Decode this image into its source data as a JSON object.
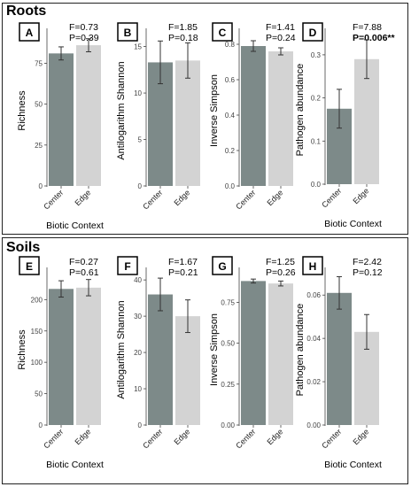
{
  "sections": [
    {
      "title": "Roots",
      "panels_label": "roots"
    },
    {
      "title": "Soils",
      "panels_label": "soils"
    }
  ],
  "colors": {
    "center": "#7d8a89",
    "edge": "#d3d3d3",
    "axis": "#444444",
    "text": "#000000"
  },
  "chart_data": [
    {
      "type": "bar",
      "panel": "A",
      "section": "Roots",
      "categories": [
        "Center",
        "Edge"
      ],
      "values": [
        81,
        86
      ],
      "errors": [
        4,
        4
      ],
      "ylabel": "Richness",
      "xlabel": "Biotic Context",
      "ylim": [
        0,
        92
      ],
      "yticks": [
        "0",
        "25",
        "50",
        "75"
      ],
      "ytick_values": [
        0,
        25,
        50,
        75
      ],
      "stats": [
        "F=0.73",
        "P=0.39"
      ],
      "stats_bold": [
        false,
        false
      ]
    },
    {
      "type": "bar",
      "panel": "B",
      "section": "Roots",
      "categories": [
        "Center",
        "Edge"
      ],
      "values": [
        13.3,
        13.5
      ],
      "errors": [
        2.3,
        1.9
      ],
      "ylabel": "Antilogarithm Shannon",
      "xlabel": "",
      "ylim": [
        0,
        16.2
      ],
      "yticks": [
        "0",
        "5",
        "10",
        "15"
      ],
      "ytick_values": [
        0,
        5,
        10,
        15
      ],
      "stats": [
        "F=1.85",
        "P=0.18"
      ],
      "stats_bold": [
        false,
        false
      ]
    },
    {
      "type": "bar",
      "panel": "C",
      "section": "Roots",
      "categories": [
        "Center",
        "Edge"
      ],
      "values": [
        0.79,
        0.76
      ],
      "errors": [
        0.03,
        0.02
      ],
      "ylabel": "Inverse Simpson",
      "xlabel": "",
      "ylim": [
        0,
        0.85
      ],
      "yticks": [
        "0.0",
        "0.2",
        "0.4",
        "0.6",
        "0.8"
      ],
      "ytick_values": [
        0,
        0.2,
        0.4,
        0.6,
        0.8
      ],
      "stats": [
        "F=1.41",
        "P=0.24"
      ],
      "stats_bold": [
        false,
        false
      ]
    },
    {
      "type": "bar",
      "panel": "D",
      "section": "Roots",
      "categories": [
        "Center",
        "Edge"
      ],
      "values": [
        0.175,
        0.29
      ],
      "errors": [
        0.045,
        0.045
      ],
      "ylabel": "Pathogen abundance",
      "xlabel": "Biotic Context",
      "ylim": [
        0,
        0.345
      ],
      "yticks": [
        "0.0",
        "0.1",
        "0.2",
        "0.3"
      ],
      "ytick_values": [
        0,
        0.1,
        0.2,
        0.3
      ],
      "stats": [
        "F=7.88",
        "P=0.006**"
      ],
      "stats_bold": [
        false,
        true
      ]
    },
    {
      "type": "bar",
      "panel": "E",
      "section": "Soils",
      "categories": [
        "Center",
        "Edge"
      ],
      "values": [
        217,
        219
      ],
      "errors": [
        13,
        13
      ],
      "ylabel": "Richness",
      "xlabel": "Biotic Context",
      "ylim": [
        0,
        240
      ],
      "yticks": [
        "0",
        "50",
        "100",
        "150",
        "200"
      ],
      "ytick_values": [
        0,
        50,
        100,
        150,
        200
      ],
      "stats": [
        "F=0.27",
        "P=0.61"
      ],
      "stats_bold": [
        false,
        false
      ]
    },
    {
      "type": "bar",
      "panel": "F",
      "section": "Soils",
      "categories": [
        "Center",
        "Edge"
      ],
      "values": [
        36,
        30
      ],
      "errors": [
        4.5,
        4.5
      ],
      "ylabel": "Antilogarithm Shannon",
      "xlabel": "",
      "ylim": [
        0,
        41.5
      ],
      "yticks": [
        "0",
        "10",
        "20",
        "30",
        "40"
      ],
      "ytick_values": [
        0,
        10,
        20,
        30,
        40
      ],
      "stats": [
        "F=1.67",
        "P=0.21"
      ],
      "stats_bold": [
        false,
        false
      ]
    },
    {
      "type": "bar",
      "panel": "G",
      "section": "Soils",
      "categories": [
        "Center",
        "Edge"
      ],
      "values": [
        0.88,
        0.865
      ],
      "errors": [
        0.012,
        0.015
      ],
      "ylabel": "Inverse Simpson",
      "xlabel": "",
      "ylim": [
        0,
        0.92
      ],
      "yticks": [
        "0.00",
        "0.25",
        "0.50",
        "0.75"
      ],
      "ytick_values": [
        0,
        0.25,
        0.5,
        0.75
      ],
      "stats": [
        "F=1.25",
        "P=0.26"
      ],
      "stats_bold": [
        false,
        false
      ]
    },
    {
      "type": "bar",
      "panel": "H",
      "section": "Soils",
      "categories": [
        "Center",
        "Edge"
      ],
      "values": [
        0.061,
        0.043
      ],
      "errors": [
        0.0075,
        0.008
      ],
      "ylabel": "Pathogen abundance",
      "xlabel": "Biotic Context",
      "ylim": [
        0,
        0.0695
      ],
      "yticks": [
        "0.00",
        "0.02",
        "0.04",
        "0.06"
      ],
      "ytick_values": [
        0,
        0.02,
        0.04,
        0.06
      ],
      "stats": [
        "F=2.42",
        "P=0.12"
      ],
      "stats_bold": [
        false,
        false
      ]
    }
  ]
}
